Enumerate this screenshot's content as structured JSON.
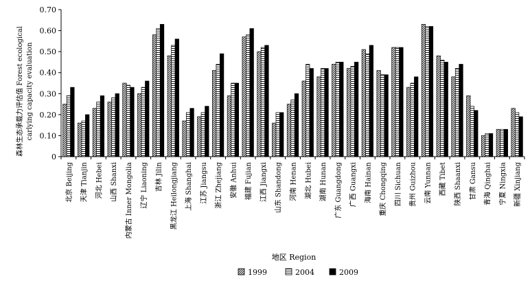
{
  "chart_data": {
    "type": "bar",
    "title": "",
    "ylabel_line1": "森林生态承载力评估值 Forest ecological",
    "ylabel_line2": "carlying capacity evaluation",
    "xlabel": "地区 Region",
    "ylim": [
      0,
      0.7
    ],
    "yticks": [
      "0",
      "0.10",
      "0.20",
      "0.30",
      "0.40",
      "0.50",
      "0.60",
      "0.70"
    ],
    "categories": [
      "北京 Beijing",
      "天津 Tianjin",
      "河北 Hebei",
      "山西 Shanxi",
      "内蒙古 Inner Mongolia",
      "辽宁 Liaoning",
      "吉林 Jilin",
      "黑龙江 Heilongjiang",
      "上海 Shanghai",
      "江苏 Jiangsu",
      "浙江 Zhejiang",
      "安徽 Anhui",
      "福建 Fujian",
      "江西 Jiangxi",
      "山东 Shandong",
      "河南 Henan",
      "湖北 Hubei",
      "湖南 Hunan",
      "广东 Guangdong",
      "广西 Guangxi",
      "海南 Hainan",
      "重庆 Chongqing",
      "四川 Sichuan",
      "贵州 Guizhou",
      "云南 Yunnan",
      "西藏 Tibet",
      "陕西 Shaanxi",
      "甘肃 Gansu",
      "青海 Qinghai",
      "宁夏 Ningxia",
      "新疆 Xinjiang"
    ],
    "series": [
      {
        "name": "1999",
        "pattern": "diag",
        "values": [
          0.25,
          0.16,
          0.23,
          0.26,
          0.35,
          0.3,
          0.58,
          0.48,
          0.17,
          0.19,
          0.41,
          0.29,
          0.57,
          0.5,
          0.16,
          0.25,
          0.36,
          0.38,
          0.44,
          0.42,
          0.51,
          0.41,
          0.52,
          0.33,
          0.63,
          0.48,
          0.38,
          0.29,
          0.1,
          0.13,
          0.23
        ]
      },
      {
        "name": "2004",
        "pattern": "horiz",
        "values": [
          0.29,
          0.17,
          0.26,
          0.28,
          0.34,
          0.33,
          0.61,
          0.53,
          0.21,
          0.21,
          0.44,
          0.35,
          0.58,
          0.52,
          0.21,
          0.27,
          0.44,
          0.42,
          0.45,
          0.43,
          0.49,
          0.39,
          0.52,
          0.35,
          0.62,
          0.46,
          0.42,
          0.24,
          0.11,
          0.13,
          0.21
        ]
      },
      {
        "name": "2009",
        "pattern": "solid",
        "values": [
          0.33,
          0.2,
          0.29,
          0.3,
          0.33,
          0.36,
          0.63,
          0.56,
          0.23,
          0.24,
          0.49,
          0.35,
          0.61,
          0.53,
          0.21,
          0.3,
          0.42,
          0.42,
          0.45,
          0.45,
          0.53,
          0.39,
          0.52,
          0.38,
          0.62,
          0.45,
          0.44,
          0.22,
          0.11,
          0.13,
          0.19
        ]
      }
    ],
    "grid": false,
    "legend_position": "bottom-center"
  }
}
